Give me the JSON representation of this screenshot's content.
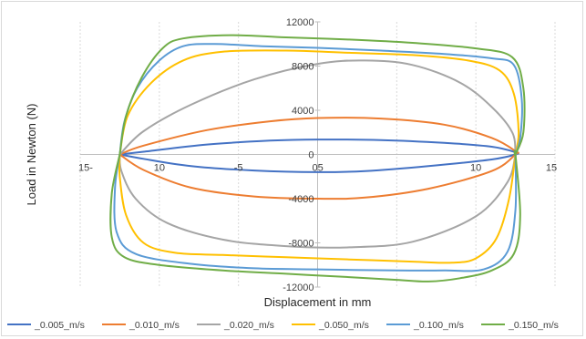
{
  "chart_data": {
    "type": "scatter",
    "title": "",
    "xlabel": "Displacement in mm",
    "ylabel": "Load in Newton (N)",
    "xlim": [
      -15,
      15
    ],
    "ylim": [
      -12000,
      12000
    ],
    "x_tick_labels": [
      "15-",
      "10",
      "-5",
      "05",
      "10",
      "15"
    ],
    "y_tick_labels": [
      "12000",
      "8000",
      "4000",
      "0",
      "-4000",
      "-8000",
      "-12000"
    ],
    "grid": "vertical dotted",
    "legend_position": "bottom",
    "series": [
      {
        "name": "_0.005_m/s",
        "color": "#4472c4",
        "upper": [
          [
            -12.5,
            0
          ],
          [
            -11,
            250
          ],
          [
            -7,
            900
          ],
          [
            -3,
            1250
          ],
          [
            0,
            1350
          ],
          [
            4,
            1300
          ],
          [
            8,
            1050
          ],
          [
            11,
            700
          ],
          [
            12.5,
            200
          ]
        ],
        "lower": [
          [
            12.5,
            0
          ],
          [
            11,
            -450
          ],
          [
            7,
            -1050
          ],
          [
            3,
            -1500
          ],
          [
            0,
            -1600
          ],
          [
            -4,
            -1450
          ],
          [
            -8,
            -1050
          ],
          [
            -11,
            -400
          ],
          [
            -12.5,
            0
          ]
        ]
      },
      {
        "name": "_0.010_m/s",
        "color": "#ed7d31",
        "upper": [
          [
            -12.5,
            0
          ],
          [
            -11,
            800
          ],
          [
            -7,
            2200
          ],
          [
            -3,
            3000
          ],
          [
            0,
            3300
          ],
          [
            4,
            3250
          ],
          [
            8,
            2700
          ],
          [
            11,
            1500
          ],
          [
            12.5,
            300
          ]
        ],
        "lower": [
          [
            12.5,
            0
          ],
          [
            11,
            -1500
          ],
          [
            7,
            -3100
          ],
          [
            3,
            -3900
          ],
          [
            0,
            -4000
          ],
          [
            -4,
            -3800
          ],
          [
            -8,
            -3000
          ],
          [
            -11,
            -1400
          ],
          [
            -12.5,
            0
          ]
        ]
      },
      {
        "name": "_0.020_m/s",
        "color": "#a5a5a5",
        "upper": [
          [
            -12.5,
            0
          ],
          [
            -11,
            2100
          ],
          [
            -8,
            4500
          ],
          [
            -4,
            6800
          ],
          [
            0,
            8200
          ],
          [
            3,
            8500
          ],
          [
            6,
            8100
          ],
          [
            9,
            6500
          ],
          [
            11,
            4300
          ],
          [
            12.3,
            2000
          ],
          [
            12.5,
            0
          ]
        ],
        "lower": [
          [
            12.5,
            0
          ],
          [
            12,
            -2500
          ],
          [
            10,
            -5600
          ],
          [
            6,
            -7900
          ],
          [
            2,
            -8400
          ],
          [
            -2,
            -8300
          ],
          [
            -6,
            -7700
          ],
          [
            -9.5,
            -6200
          ],
          [
            -11.5,
            -4000
          ],
          [
            -12.4,
            -1500
          ],
          [
            -12.5,
            0
          ]
        ]
      },
      {
        "name": "_0.050_m/s",
        "color": "#ffc000",
        "upper": [
          [
            -12.5,
            0
          ],
          [
            -12,
            3500
          ],
          [
            -10.5,
            6500
          ],
          [
            -8.5,
            8500
          ],
          [
            -6,
            9300
          ],
          [
            -2,
            9400
          ],
          [
            2,
            9200
          ],
          [
            6,
            9000
          ],
          [
            9.5,
            8500
          ],
          [
            11.5,
            7600
          ],
          [
            12.4,
            5500
          ],
          [
            12.7,
            2000
          ],
          [
            12.5,
            0
          ]
        ],
        "lower": [
          [
            12.5,
            0
          ],
          [
            12.1,
            -4000
          ],
          [
            11.3,
            -7600
          ],
          [
            10,
            -9400
          ],
          [
            8.5,
            -9800
          ],
          [
            6,
            -9700
          ],
          [
            2,
            -9500
          ],
          [
            -2,
            -9300
          ],
          [
            -6,
            -9100
          ],
          [
            -9,
            -8900
          ],
          [
            -11,
            -8000
          ],
          [
            -12.1,
            -5500
          ],
          [
            -12.5,
            -2000
          ],
          [
            -12.5,
            0
          ]
        ]
      },
      {
        "name": "_0.100_m/s",
        "color": "#5b9bd5",
        "upper": [
          [
            -12.5,
            0
          ],
          [
            -12.2,
            3000
          ],
          [
            -11.4,
            6000
          ],
          [
            -10,
            8500
          ],
          [
            -8.5,
            9800
          ],
          [
            -6.5,
            10000
          ],
          [
            -3.5,
            9800
          ],
          [
            0,
            9650
          ],
          [
            4,
            9400
          ],
          [
            8,
            9100
          ],
          [
            11,
            8700
          ],
          [
            12.4,
            8100
          ],
          [
            12.9,
            5000
          ],
          [
            12.8,
            1500
          ],
          [
            12.5,
            0
          ]
        ],
        "lower": [
          [
            12.5,
            0
          ],
          [
            12.5,
            -5000
          ],
          [
            12,
            -8800
          ],
          [
            10.5,
            -10400
          ],
          [
            8,
            -10500
          ],
          [
            5,
            -10500
          ],
          [
            0,
            -10400
          ],
          [
            -4,
            -10300
          ],
          [
            -8,
            -9900
          ],
          [
            -11.5,
            -9000
          ],
          [
            -12.7,
            -7000
          ],
          [
            -12.8,
            -3000
          ],
          [
            -12.5,
            0
          ]
        ]
      },
      {
        "name": "_0.150_m/s",
        "color": "#70ad47",
        "upper": [
          [
            -12.5,
            0
          ],
          [
            -12.1,
            3500
          ],
          [
            -11.1,
            7000
          ],
          [
            -9.8,
            9600
          ],
          [
            -8.5,
            10500
          ],
          [
            -5.5,
            10800
          ],
          [
            -2,
            10600
          ],
          [
            2,
            10400
          ],
          [
            6,
            10100
          ],
          [
            10,
            9600
          ],
          [
            12.3,
            8800
          ],
          [
            13,
            6000
          ],
          [
            13,
            2000
          ],
          [
            12.5,
            0
          ]
        ],
        "lower": [
          [
            12.5,
            0
          ],
          [
            12.8,
            -5500
          ],
          [
            12.4,
            -9000
          ],
          [
            11,
            -10500
          ],
          [
            9,
            -11200
          ],
          [
            7,
            -11500
          ],
          [
            5,
            -11350
          ],
          [
            2,
            -11100
          ],
          [
            -2,
            -10800
          ],
          [
            -6,
            -10500
          ],
          [
            -10,
            -10000
          ],
          [
            -12.2,
            -9300
          ],
          [
            -13,
            -7500
          ],
          [
            -13,
            -3500
          ],
          [
            -12.5,
            0
          ]
        ]
      }
    ]
  }
}
